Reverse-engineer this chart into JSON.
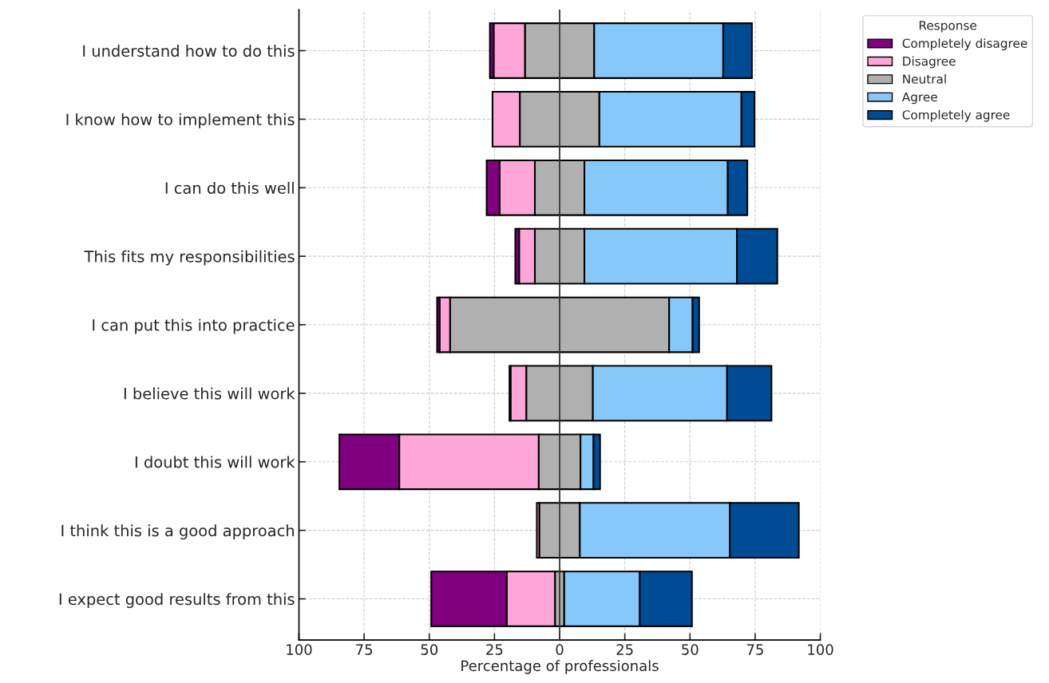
{
  "chart_data": {
    "type": "bar",
    "orientation": "horizontal",
    "xlabel": "Percentage of professionals",
    "legend_title": "Response",
    "categories": [
      "I understand how to do this",
      "I know how to implement this",
      "I can do this well",
      "This fits my responsibilities",
      "I can put this into practice",
      "I believe this will work",
      "I doubt this will work",
      "I think this is a good approach",
      "I expect good results from this"
    ],
    "series": [
      {
        "name": "Completely disagree",
        "color": "#800080",
        "values": [
          1.5,
          null,
          5,
          1.5,
          1,
          0.5,
          23,
          null,
          29
        ],
        "base": [
          -26.75,
          null,
          -28,
          -17,
          -47,
          -19.25,
          -84.5,
          null,
          -49.25
        ]
      },
      {
        "name": "Disagree",
        "color": "#ffa6d9",
        "values": [
          12,
          10.5,
          13.5,
          6,
          4,
          6,
          53.5,
          1,
          18.5
        ],
        "base": [
          -25.25,
          -25.75,
          -23,
          -15.5,
          -46,
          -18.75,
          -61.5,
          -8.75,
          -20.25
        ]
      },
      {
        "name": "Neutral",
        "color": "#b0b0b0",
        "values": [
          26.5,
          30.5,
          19,
          19,
          84,
          25.5,
          16,
          15.5,
          3.5
        ],
        "base": [
          -13.25,
          -15.25,
          -9.5,
          -9.5,
          -42,
          -12.75,
          -8,
          -7.75,
          -1.75
        ]
      },
      {
        "name": "Agree",
        "color": "#87c8fa",
        "values": [
          49.5,
          54.5,
          55,
          58.5,
          9,
          51.5,
          5,
          57.5,
          29
        ],
        "base": [
          13.25,
          15.25,
          9.5,
          9.5,
          42,
          12.75,
          8,
          7.75,
          1.75
        ]
      },
      {
        "name": "Completely agree",
        "color": "#004c94",
        "values": [
          11,
          5,
          7.5,
          15.5,
          2.5,
          17,
          2.5,
          26.5,
          20
        ],
        "base": [
          62.75,
          69.75,
          64.5,
          68,
          51,
          64.25,
          13,
          65.25,
          30.75
        ]
      }
    ],
    "xlim": [
      -100,
      100
    ],
    "xticks": [
      {
        "value": -100,
        "label": "100"
      },
      {
        "value": -75,
        "label": "75"
      },
      {
        "value": -50,
        "label": "50"
      },
      {
        "value": -25,
        "label": "25"
      },
      0,
      25,
      50,
      75,
      100
    ],
    "ref_lines": [
      {
        "axis": "x",
        "value": 0,
        "color": "#333333",
        "line_style": "solid"
      }
    ],
    "grid": true,
    "legend": "top right"
  }
}
